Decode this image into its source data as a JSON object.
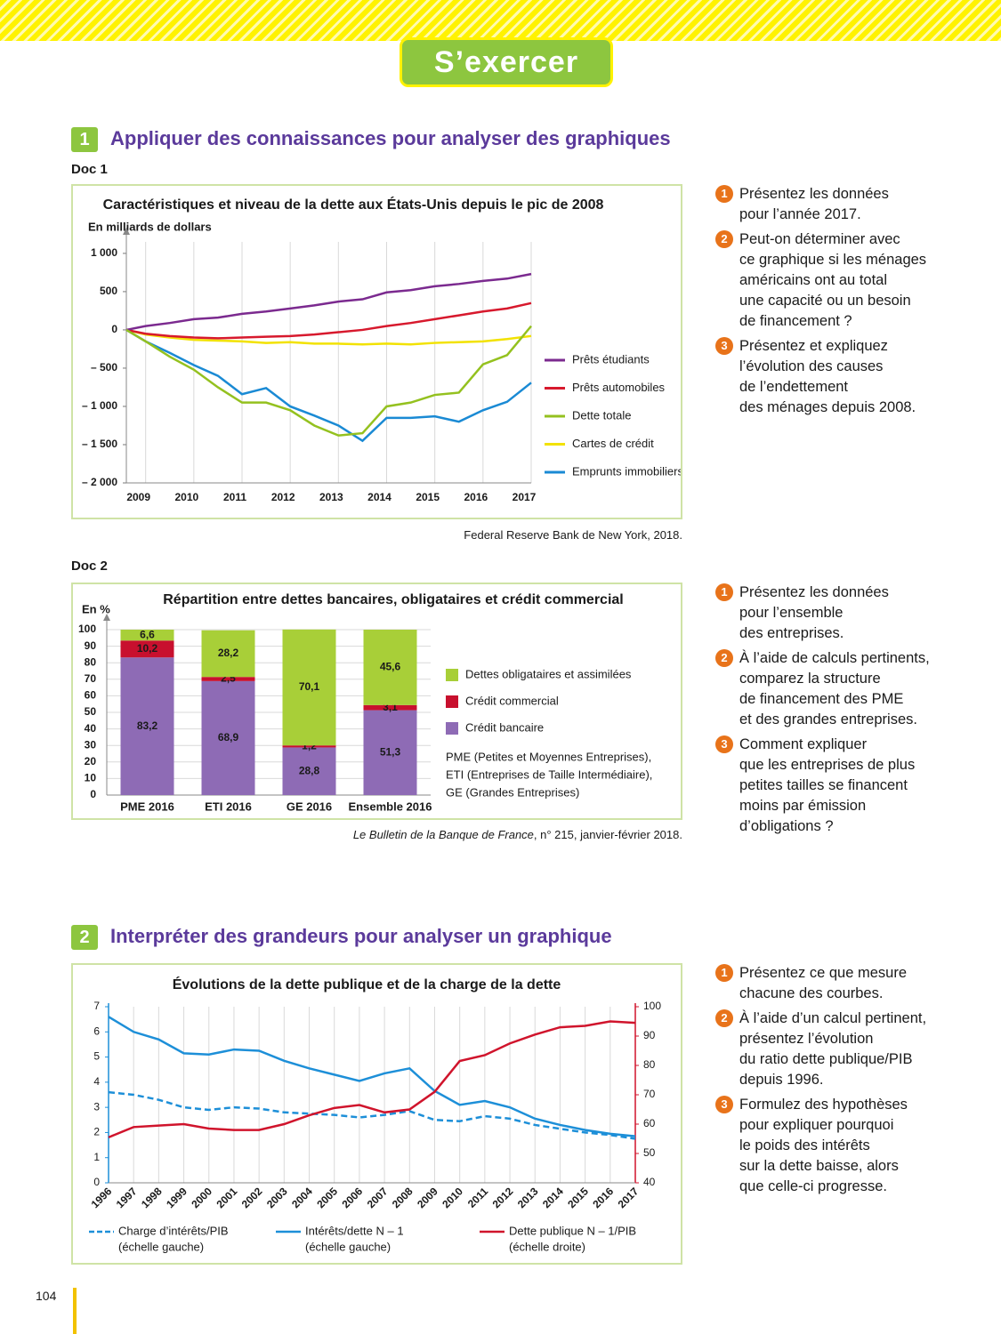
{
  "header": {
    "title": "S’exercer"
  },
  "page_number": "104",
  "sections": [
    {
      "number": "1",
      "title": "Appliquer des connaissances pour analyser des graphiques",
      "docs": [
        {
          "label": "Doc 1",
          "questions": [
            {
              "number": "1",
              "text": "Présentez les données\npour l’année 2017."
            },
            {
              "number": "2",
              "text": "Peut-on déterminer avec\nce graphique si les ménages\naméricains ont au total\nune capacité ou un besoin\nde financement ?"
            },
            {
              "number": "3",
              "text": "Présentez et expliquez\nl’évolution des causes\nde l’endettement\ndes ménages depuis 2008."
            }
          ]
        },
        {
          "label": "Doc 2",
          "questions": [
            {
              "number": "1",
              "text": "Présentez les données\npour l’ensemble\ndes entreprises."
            },
            {
              "number": "2",
              "text": "À l’aide de calculs pertinents,\ncomparez la structure\nde financement des PME\net des grandes entreprises."
            },
            {
              "number": "3",
              "text": "Comment expliquer\nque les entreprises de plus\npetites tailles se financent\nmoins par émission\nd’obligations ?"
            }
          ]
        }
      ]
    },
    {
      "number": "2",
      "title": "Interpréter des grandeurs pour analyser un graphique",
      "questions": [
        {
          "number": "1",
          "text": "Présentez ce que mesure\nchacune des courbes."
        },
        {
          "number": "2",
          "text": "À l’aide d’un calcul pertinent,\nprésentez l’évolution\ndu ratio dette publique/PIB\ndepuis 1996."
        },
        {
          "number": "3",
          "text": "Formulez des hypothèses\npour expliquer pourquoi\nle poids des intérêts\nsur la dette baisse, alors\nque celle-ci progresse."
        }
      ]
    }
  ],
  "chart_data": [
    {
      "type": "line",
      "title": "Caractéristiques et niveau de la dette aux États-Unis depuis le pic de 2008",
      "y_label": "En milliards de dollars",
      "source": "Federal Reserve Bank de New York, 2018.",
      "x": [
        2008.6,
        2009,
        2009.5,
        2010,
        2010.5,
        2011,
        2011.5,
        2012,
        2012.5,
        2013,
        2013.5,
        2014,
        2014.5,
        2015,
        2015.5,
        2016,
        2016.5,
        2017
      ],
      "xlim": [
        2008.6,
        2017
      ],
      "xticks": [
        2009,
        2010,
        2011,
        2012,
        2013,
        2014,
        2015,
        2016,
        2017
      ],
      "ylim": [
        -2000,
        1150
      ],
      "yticks": [
        {
          "value": 1000,
          "label": "1 000"
        },
        500,
        0,
        {
          "value": -500,
          "label": "– 500"
        },
        {
          "value": -1000,
          "label": "– 1 000"
        },
        {
          "value": -1500,
          "label": "– 1 500"
        },
        {
          "value": -2000,
          "label": "– 2 000"
        }
      ],
      "grid": "x",
      "series": [
        {
          "name": "Prêts étudiants",
          "color": "#7b2a8f",
          "values": [
            0,
            50,
            90,
            140,
            160,
            210,
            240,
            280,
            320,
            370,
            400,
            490,
            520,
            570,
            600,
            640,
            670,
            730
          ]
        },
        {
          "name": "Prêts automobiles",
          "color": "#d7192d",
          "values": [
            0,
            -50,
            -80,
            -100,
            -110,
            -100,
            -90,
            -80,
            -60,
            -30,
            0,
            50,
            90,
            140,
            190,
            240,
            280,
            350
          ]
        },
        {
          "name": "Dette totale",
          "color": "#94c11f",
          "values": [
            0,
            -150,
            -350,
            -520,
            -750,
            -950,
            -950,
            -1050,
            -1250,
            -1380,
            -1350,
            -1000,
            -950,
            -850,
            -820,
            -450,
            -330,
            50
          ]
        },
        {
          "name": "Cartes de crédit",
          "color": "#f2e200",
          "values": [
            0,
            -60,
            -100,
            -130,
            -140,
            -150,
            -170,
            -160,
            -180,
            -180,
            -190,
            -180,
            -190,
            -170,
            -160,
            -150,
            -120,
            -80
          ]
        },
        {
          "name": "Emprunts immobiliers",
          "color": "#1a8ad4",
          "values": [
            0,
            -150,
            -300,
            -460,
            -600,
            -840,
            -760,
            -1000,
            -1120,
            -1250,
            -1450,
            -1150,
            -1150,
            -1130,
            -1200,
            -1050,
            -940,
            -690
          ]
        }
      ]
    },
    {
      "type": "stacked_bar",
      "title": "Répartition entre dettes bancaires, obligataires et crédit commercial",
      "y_label": "En %",
      "source_italic": "Le Bulletin de la Banque de France",
      "source": ", n° 215, janvier-février 2018.",
      "categories": [
        "PME 2016",
        "ETI 2016",
        "GE 2016",
        "Ensemble 2016"
      ],
      "ylim": [
        0,
        100
      ],
      "yticks": [
        0,
        10,
        20,
        30,
        40,
        50,
        60,
        70,
        80,
        90,
        100
      ],
      "grid": "y",
      "notes": [
        "PME (Petites et Moyennes Entreprises),",
        "ETI (Entreprises de Taille Intermédiaire),",
        "GE (Grandes Entreprises)"
      ],
      "series": [
        {
          "name": "Crédit bancaire",
          "color": "#8e6bb5",
          "values": [
            83.2,
            68.9,
            28.8,
            51.3
          ],
          "value_labels": [
            "83,2",
            "68,9",
            "28,8",
            "51,3"
          ]
        },
        {
          "name": "Crédit commercial",
          "color": "#c8102e",
          "values": [
            10.2,
            2.5,
            1.2,
            3.1
          ],
          "value_labels": [
            "10,2",
            "2,5",
            "1,2",
            "3,1"
          ]
        },
        {
          "name": "Dettes obligataires et assimilées",
          "color": "#a8cf38",
          "values": [
            6.6,
            28.2,
            70.1,
            45.6
          ],
          "value_labels": [
            "6,6",
            "28,2",
            "70,1",
            "45,6"
          ]
        }
      ]
    },
    {
      "type": "dual_line",
      "title": "Évolutions de la dette publique et de la charge de la dette",
      "x": [
        1996,
        1997,
        1998,
        1999,
        2000,
        2001,
        2002,
        2003,
        2004,
        2005,
        2006,
        2007,
        2008,
        2009,
        2010,
        2011,
        2012,
        2013,
        2014,
        2015,
        2016,
        2017
      ],
      "xlim": [
        1996,
        2017
      ],
      "ylim": [
        0,
        7
      ],
      "yticks": [
        0,
        1,
        2,
        3,
        4,
        5,
        6,
        7
      ],
      "y2lim": [
        40,
        100
      ],
      "y2ticks": [
        40,
        50,
        60,
        70,
        80,
        90,
        100
      ],
      "grid": "x",
      "series": [
        {
          "name": "Charge d’intérêts/PIB",
          "scale": "(échelle gauche)",
          "color": "#1d8fd8",
          "dashed": true,
          "axis": "y",
          "values": [
            3.6,
            3.5,
            3.3,
            3.0,
            2.9,
            3.0,
            2.95,
            2.8,
            2.75,
            2.7,
            2.6,
            2.7,
            2.85,
            2.5,
            2.45,
            2.65,
            2.55,
            2.3,
            2.15,
            2.0,
            1.9,
            1.75
          ]
        },
        {
          "name": "Intérêts/dette N – 1",
          "scale": "(échelle gauche)",
          "color": "#1d8fd8",
          "dashed": false,
          "axis": "y",
          "values": [
            6.6,
            6.0,
            5.7,
            5.15,
            5.1,
            5.3,
            5.25,
            4.85,
            4.55,
            4.3,
            4.05,
            4.35,
            4.55,
            3.65,
            3.1,
            3.25,
            3.0,
            2.55,
            2.3,
            2.1,
            1.95,
            1.85
          ]
        },
        {
          "name": "Dette publique N – 1/PIB",
          "scale": "(échelle droite)",
          "color": "#d0142c",
          "dashed": false,
          "axis": "y2",
          "values": [
            55.5,
            59,
            59.5,
            60,
            58.5,
            58,
            58,
            60,
            63,
            65.5,
            66.5,
            64,
            65,
            71,
            81.5,
            83.5,
            87.5,
            90.5,
            93,
            93.5,
            95,
            94.5
          ]
        }
      ]
    }
  ]
}
